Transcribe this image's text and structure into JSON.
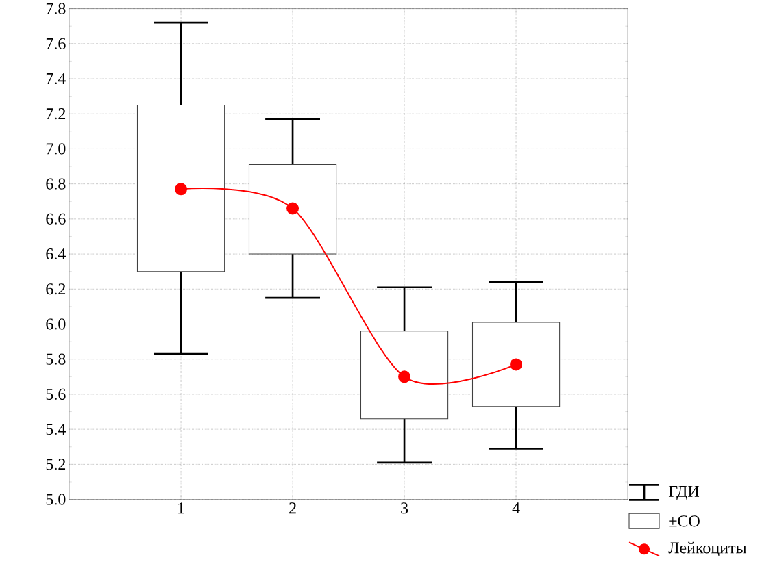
{
  "chart_data": {
    "type": "box",
    "categories": [
      "1",
      "2",
      "3",
      "4"
    ],
    "boxes": [
      {
        "low": 5.83,
        "q1": 6.3,
        "q3": 7.25,
        "high": 7.72
      },
      {
        "low": 6.15,
        "q1": 6.4,
        "q3": 6.91,
        "high": 7.17
      },
      {
        "low": 5.21,
        "q1": 5.46,
        "q3": 5.96,
        "high": 6.21
      },
      {
        "low": 5.29,
        "q1": 5.53,
        "q3": 6.01,
        "high": 6.24
      }
    ],
    "series": [
      {
        "name": "Лейкоциты",
        "type": "line",
        "color": "#ff0000",
        "values": [
          6.77,
          6.66,
          5.7,
          5.77
        ]
      }
    ],
    "annotations": [
      "ГДИ",
      "±СО"
    ],
    "marker": "circle",
    "ylim": [
      5.0,
      7.8
    ],
    "yticks": [
      {
        "value": 5.0,
        "label": "5.0"
      },
      5.2,
      5.4,
      5.6,
      5.8,
      {
        "value": 6.0,
        "label": "6.0"
      },
      6.2,
      6.4,
      6.6,
      6.8,
      {
        "value": 7.0,
        "label": "7.0"
      },
      7.2,
      7.4,
      7.6,
      7.8
    ],
    "grid": true,
    "legend": "bottom right"
  }
}
